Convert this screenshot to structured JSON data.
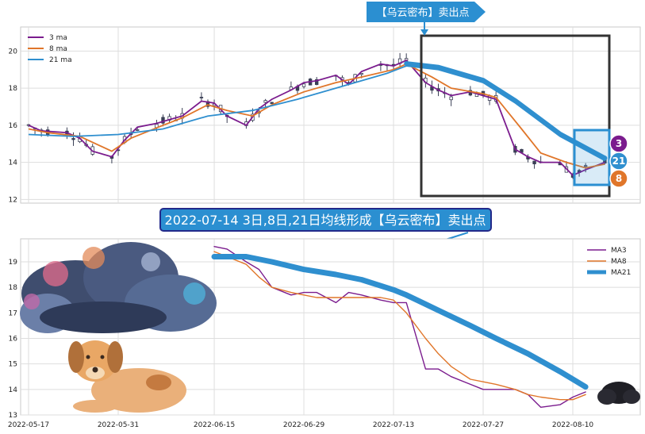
{
  "annotations": {
    "top_callout": "【乌云密布】卖出点",
    "banner": "2022-07-14 3日,8日,21日均线形成【乌云密布】卖出点",
    "badges": [
      "3",
      "21",
      "8"
    ]
  },
  "colors": {
    "ma3": "#7b1c8e",
    "ma8": "#e0762a",
    "ma21": "#2f8fcf",
    "candle": "#3a3f55",
    "callout_bg": "#2b8fd1",
    "banner_bg": "#2b8fd1",
    "banner_border": "#232a8a",
    "frame": "#333333",
    "highlight": "#2b8fd1"
  },
  "chart_data": [
    {
      "type": "line",
      "subtype": "candlestick-with-moving-averages",
      "ylim": [
        11.8,
        21.3
      ],
      "yticks": [
        12,
        14,
        16,
        18,
        20
      ],
      "grid": true,
      "legend": {
        "position": "top-left",
        "entries": [
          "3 ma",
          "8 ma",
          "21 ma"
        ]
      },
      "x_range": [
        "2022-05-17",
        "2022-08-15"
      ],
      "series": [
        {
          "name": "3 ma",
          "points": [
            [
              "2022-05-17",
              16.0
            ],
            [
              "2022-05-19",
              15.7
            ],
            [
              "2022-05-23",
              15.6
            ],
            [
              "2022-05-25",
              15.3
            ],
            [
              "2022-05-27",
              14.6
            ],
            [
              "2022-05-30",
              14.3
            ],
            [
              "2022-06-01",
              15.2
            ],
            [
              "2022-06-03",
              15.9
            ],
            [
              "2022-06-06",
              16.1
            ],
            [
              "2022-06-08",
              16.3
            ],
            [
              "2022-06-10",
              16.5
            ],
            [
              "2022-06-13",
              17.3
            ],
            [
              "2022-06-15",
              17.2
            ],
            [
              "2022-06-17",
              16.5
            ],
            [
              "2022-06-20",
              16.0
            ],
            [
              "2022-06-22",
              16.9
            ],
            [
              "2022-06-24",
              17.4
            ],
            [
              "2022-06-27",
              17.9
            ],
            [
              "2022-06-29",
              18.3
            ],
            [
              "2022-07-01",
              18.4
            ],
            [
              "2022-07-04",
              18.7
            ],
            [
              "2022-07-06",
              18.2
            ],
            [
              "2022-07-08",
              18.9
            ],
            [
              "2022-07-11",
              19.3
            ],
            [
              "2022-07-13",
              19.2
            ],
            [
              "2022-07-15",
              19.5
            ],
            [
              "2022-07-18",
              18.3
            ],
            [
              "2022-07-20",
              17.9
            ],
            [
              "2022-07-22",
              17.6
            ],
            [
              "2022-07-25",
              17.8
            ],
            [
              "2022-07-27",
              17.6
            ],
            [
              "2022-07-29",
              17.4
            ],
            [
              "2022-08-01",
              14.7
            ],
            [
              "2022-08-03",
              14.3
            ],
            [
              "2022-08-05",
              14.0
            ],
            [
              "2022-08-08",
              14.0
            ],
            [
              "2022-08-10",
              13.3
            ],
            [
              "2022-08-12",
              13.6
            ],
            [
              "2022-08-15",
              14.0
            ]
          ]
        },
        {
          "name": "8 ma",
          "points": [
            [
              "2022-05-17",
              15.8
            ],
            [
              "2022-05-20",
              15.6
            ],
            [
              "2022-05-25",
              15.4
            ],
            [
              "2022-05-30",
              14.6
            ],
            [
              "2022-06-02",
              15.3
            ],
            [
              "2022-06-07",
              16.0
            ],
            [
              "2022-06-10",
              16.4
            ],
            [
              "2022-06-14",
              17.1
            ],
            [
              "2022-06-17",
              16.8
            ],
            [
              "2022-06-21",
              16.5
            ],
            [
              "2022-06-24",
              17.1
            ],
            [
              "2022-06-29",
              17.8
            ],
            [
              "2022-07-04",
              18.3
            ],
            [
              "2022-07-08",
              18.6
            ],
            [
              "2022-07-13",
              19.0
            ],
            [
              "2022-07-15",
              19.3
            ],
            [
              "2022-07-19",
              18.6
            ],
            [
              "2022-07-22",
              18.0
            ],
            [
              "2022-07-27",
              17.7
            ],
            [
              "2022-07-29",
              17.5
            ],
            [
              "2022-08-02",
              15.8
            ],
            [
              "2022-08-05",
              14.5
            ],
            [
              "2022-08-09",
              14.0
            ],
            [
              "2022-08-12",
              13.7
            ],
            [
              "2022-08-15",
              13.9
            ]
          ]
        },
        {
          "name": "21 ma",
          "points": [
            [
              "2022-05-17",
              15.5
            ],
            [
              "2022-05-24",
              15.4
            ],
            [
              "2022-05-31",
              15.5
            ],
            [
              "2022-06-07",
              15.8
            ],
            [
              "2022-06-14",
              16.5
            ],
            [
              "2022-06-21",
              16.8
            ],
            [
              "2022-06-28",
              17.4
            ],
            [
              "2022-07-05",
              18.1
            ],
            [
              "2022-07-12",
              18.8
            ],
            [
              "2022-07-15",
              19.2
            ],
            [
              "2022-07-20",
              19.0
            ],
            [
              "2022-07-27",
              18.3
            ],
            [
              "2022-08-01",
              17.2
            ],
            [
              "2022-08-08",
              15.4
            ],
            [
              "2022-08-15",
              14.1
            ]
          ]
        }
      ]
    },
    {
      "type": "line",
      "ylim": [
        13.0,
        19.9
      ],
      "yticks": [
        13,
        14,
        15,
        16,
        17,
        18,
        19
      ],
      "grid": true,
      "legend": {
        "position": "top-right",
        "entries": [
          "MA3",
          "MA8",
          "MA21"
        ]
      },
      "x_ticks": [
        "2022-05-17",
        "2022-05-31",
        "2022-06-15",
        "2022-06-29",
        "2022-07-13",
        "2022-07-27",
        "2022-08-10"
      ],
      "series": [
        {
          "name": "MA3",
          "points": [
            [
              "2022-06-15",
              19.6
            ],
            [
              "2022-06-17",
              19.5
            ],
            [
              "2022-06-20",
              19.0
            ],
            [
              "2022-06-22",
              18.7
            ],
            [
              "2022-06-24",
              18.0
            ],
            [
              "2022-06-27",
              17.7
            ],
            [
              "2022-06-29",
              17.8
            ],
            [
              "2022-07-01",
              17.8
            ],
            [
              "2022-07-04",
              17.4
            ],
            [
              "2022-07-06",
              17.8
            ],
            [
              "2022-07-08",
              17.7
            ],
            [
              "2022-07-11",
              17.5
            ],
            [
              "2022-07-13",
              17.4
            ],
            [
              "2022-07-15",
              17.4
            ],
            [
              "2022-07-18",
              14.8
            ],
            [
              "2022-07-20",
              14.8
            ],
            [
              "2022-07-22",
              14.5
            ],
            [
              "2022-07-25",
              14.2
            ],
            [
              "2022-07-27",
              14.0
            ],
            [
              "2022-07-29",
              14.0
            ],
            [
              "2022-08-01",
              14.0
            ],
            [
              "2022-08-03",
              13.8
            ],
            [
              "2022-08-05",
              13.3
            ],
            [
              "2022-08-08",
              13.4
            ],
            [
              "2022-08-10",
              13.7
            ],
            [
              "2022-08-12",
              13.9
            ]
          ]
        },
        {
          "name": "MA8",
          "points": [
            [
              "2022-06-15",
              19.4
            ],
            [
              "2022-06-17",
              19.2
            ],
            [
              "2022-06-20",
              18.9
            ],
            [
              "2022-06-22",
              18.4
            ],
            [
              "2022-06-24",
              18.0
            ],
            [
              "2022-06-27",
              17.8
            ],
            [
              "2022-06-29",
              17.7
            ],
            [
              "2022-07-01",
              17.6
            ],
            [
              "2022-07-04",
              17.6
            ],
            [
              "2022-07-08",
              17.6
            ],
            [
              "2022-07-11",
              17.6
            ],
            [
              "2022-07-13",
              17.5
            ],
            [
              "2022-07-15",
              17.0
            ],
            [
              "2022-07-18",
              16.0
            ],
            [
              "2022-07-20",
              15.4
            ],
            [
              "2022-07-22",
              14.9
            ],
            [
              "2022-07-25",
              14.4
            ],
            [
              "2022-07-27",
              14.3
            ],
            [
              "2022-07-29",
              14.2
            ],
            [
              "2022-08-01",
              14.0
            ],
            [
              "2022-08-03",
              13.8
            ],
            [
              "2022-08-05",
              13.7
            ],
            [
              "2022-08-08",
              13.6
            ],
            [
              "2022-08-10",
              13.6
            ],
            [
              "2022-08-12",
              13.8
            ]
          ]
        },
        {
          "name": "MA21",
          "points": [
            [
              "2022-06-15",
              19.2
            ],
            [
              "2022-06-20",
              19.2
            ],
            [
              "2022-06-24",
              19.0
            ],
            [
              "2022-06-29",
              18.7
            ],
            [
              "2022-07-04",
              18.5
            ],
            [
              "2022-07-08",
              18.3
            ],
            [
              "2022-07-13",
              17.9
            ],
            [
              "2022-07-15",
              17.7
            ],
            [
              "2022-07-20",
              17.1
            ],
            [
              "2022-07-25",
              16.5
            ],
            [
              "2022-07-29",
              16.0
            ],
            [
              "2022-08-03",
              15.4
            ],
            [
              "2022-08-08",
              14.7
            ],
            [
              "2022-08-12",
              14.1
            ]
          ]
        }
      ]
    }
  ]
}
